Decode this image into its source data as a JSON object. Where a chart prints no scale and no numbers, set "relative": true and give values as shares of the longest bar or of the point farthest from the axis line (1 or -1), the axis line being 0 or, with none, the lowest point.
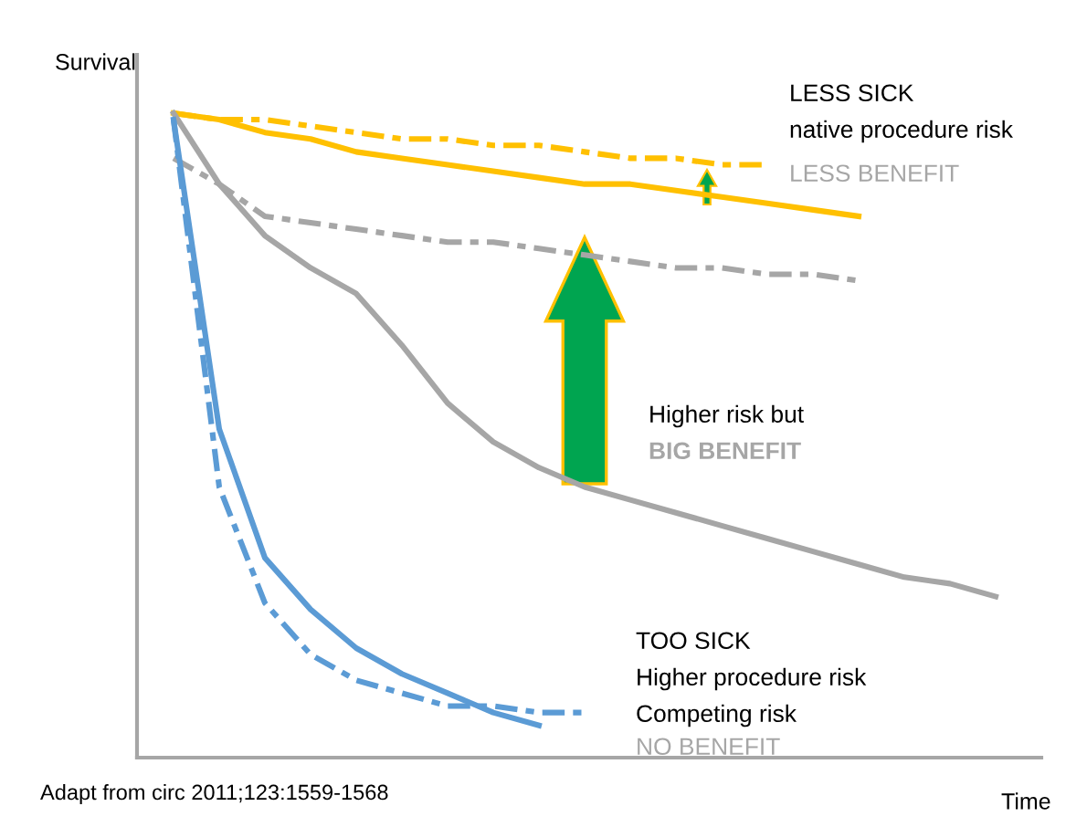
{
  "chart_data": {
    "type": "line",
    "relative": true,
    "xlabel": "Time",
    "ylabel": "Survival",
    "categories": [
      null,
      null,
      null,
      null,
      null,
      null,
      null,
      null,
      null,
      null,
      null,
      null,
      null,
      null,
      null,
      null,
      null,
      null,
      null
    ],
    "series": [
      {
        "color": "#ffc000",
        "line_style": "solid",
        "values": [
          1.0,
          0.99,
          0.97,
          0.96,
          0.94,
          0.93,
          0.92,
          0.91,
          0.9,
          0.89,
          0.89,
          0.88,
          0.87,
          0.86,
          0.85,
          0.84,
          null,
          null,
          null
        ]
      },
      {
        "color": "#ffc000",
        "line_style": "dashed",
        "values": [
          1.0,
          0.99,
          0.99,
          0.98,
          0.97,
          0.96,
          0.96,
          0.95,
          0.95,
          0.94,
          0.93,
          0.93,
          0.92,
          0.92,
          null,
          null,
          null,
          null,
          null
        ]
      },
      {
        "color": "#a6a6a6",
        "line_style": "solid",
        "values": [
          1.0,
          0.89,
          0.81,
          0.76,
          0.72,
          0.64,
          0.55,
          0.49,
          0.45,
          0.42,
          0.4,
          0.38,
          0.36,
          0.34,
          0.32,
          0.3,
          0.28,
          0.27,
          0.25
        ]
      },
      {
        "color": "#a6a6a6",
        "line_style": "dashed",
        "values": [
          0.93,
          0.89,
          0.84,
          0.83,
          0.82,
          0.81,
          0.8,
          0.8,
          0.79,
          0.78,
          0.77,
          0.76,
          0.76,
          0.75,
          0.75,
          0.74,
          null,
          null,
          null
        ]
      },
      {
        "color": "#5b9bd5",
        "line_style": "solid",
        "values": [
          0.99,
          0.51,
          0.31,
          0.23,
          0.17,
          0.13,
          0.1,
          0.07,
          0.05,
          null,
          null,
          null,
          null,
          null,
          null,
          null,
          null,
          null,
          null
        ]
      },
      {
        "color": "#5b9bd5",
        "line_style": "dashed",
        "values": [
          0.99,
          0.42,
          0.24,
          0.16,
          0.12,
          0.1,
          0.08,
          0.08,
          0.07,
          0.07,
          null,
          null,
          null,
          null,
          null,
          null,
          null,
          null,
          null
        ]
      }
    ],
    "annotations": [
      "LESS SICK",
      "native procedure risk",
      "LESS BENEFIT",
      "Higher risk but",
      "BIG BENEFIT",
      "TOO SICK",
      "Higher procedure risk",
      "Competing risk",
      "NO BENEFIT",
      "Adapt from circ 2011;123:1559-1568"
    ],
    "legend": false
  }
}
